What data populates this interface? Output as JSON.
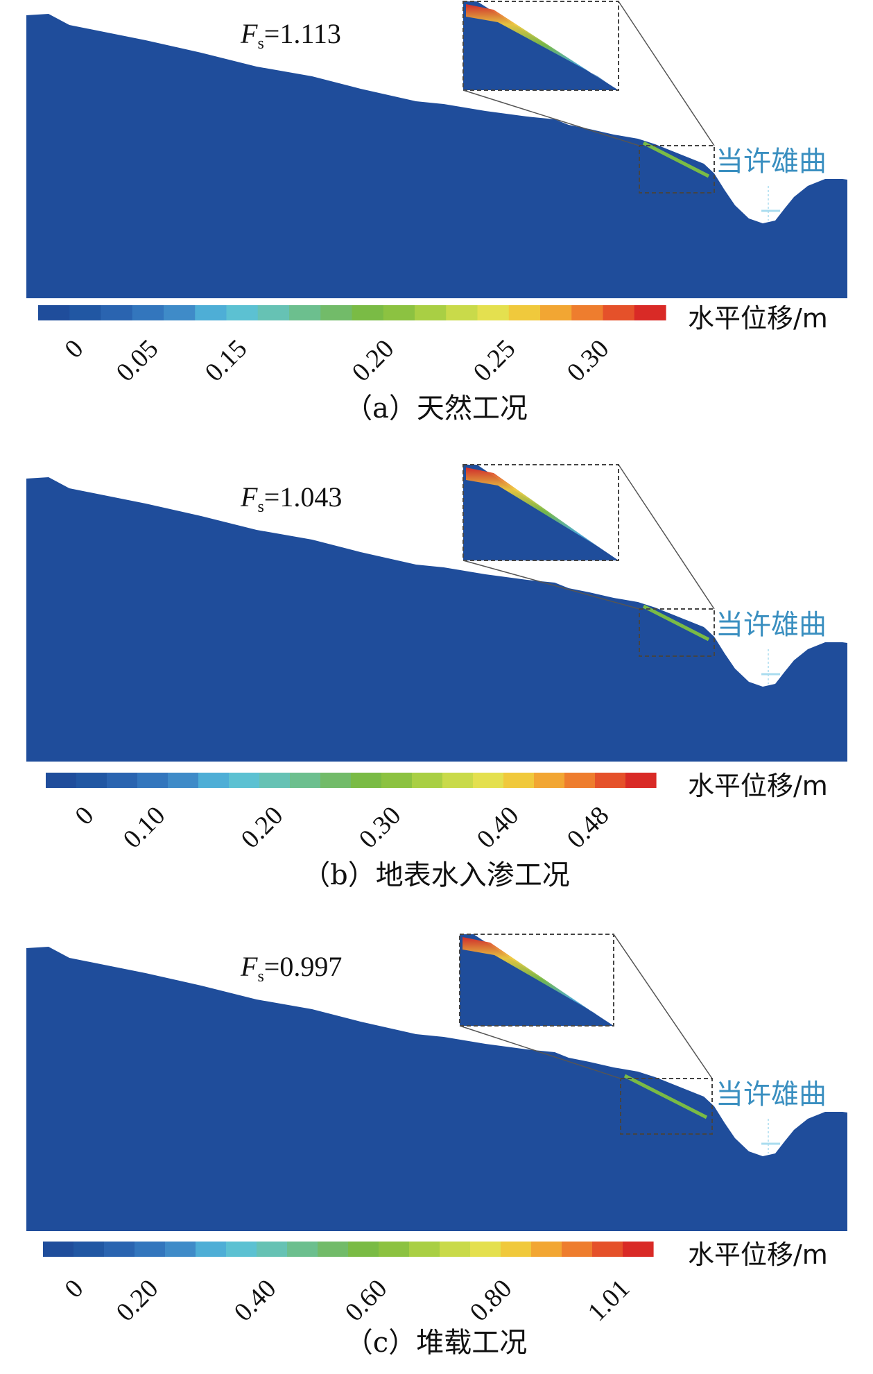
{
  "colors": {
    "slope_fill": "#1f4d9b",
    "river_label": "#3a8fc0",
    "colorbar": [
      "#1f4d9b",
      "#2157a3",
      "#2a64b0",
      "#3376bd",
      "#3f8bc8",
      "#4eaed6",
      "#5cc1d2",
      "#66c2b4",
      "#6cbf8e",
      "#72bb69",
      "#7abb45",
      "#8cc241",
      "#a9cf44",
      "#c9da4a",
      "#e4e04f",
      "#f0c93c",
      "#f2a633",
      "#ee7d2e",
      "#e5512a",
      "#d92a26"
    ]
  },
  "river_label": "当许雄曲",
  "unit_label": "水平位移/m",
  "panels": [
    {
      "fs_symbol": "F",
      "fs_sub": "s",
      "fs_value": "=1.113",
      "ticks": [
        "0",
        "0.05",
        "0.15",
        "0.20",
        "0.25",
        "0.30"
      ],
      "caption": "（a）天然工况"
    },
    {
      "fs_symbol": "F",
      "fs_sub": "s",
      "fs_value": "=1.043",
      "ticks": [
        "0",
        "0.10",
        "0.20",
        "0.30",
        "0.40",
        "0.48"
      ],
      "caption": "（b）地表水入渗工况"
    },
    {
      "fs_symbol": "F",
      "fs_sub": "s",
      "fs_value": "=0.997",
      "ticks": [
        "0",
        "0.20",
        "0.40",
        "0.60",
        "0.80",
        "1.01"
      ],
      "caption": "（c）堆载工况"
    }
  ]
}
